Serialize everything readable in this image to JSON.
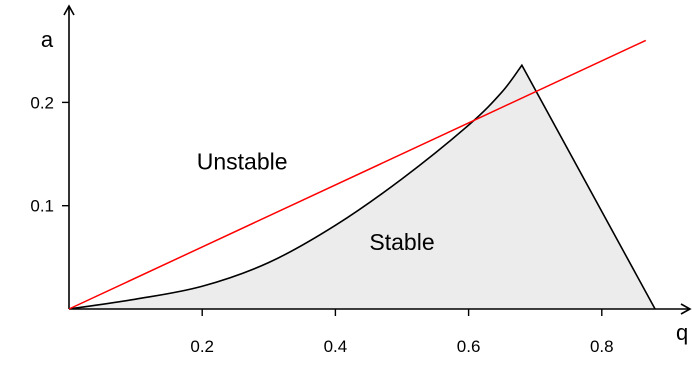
{
  "chart_data": {
    "type": "area",
    "title": "",
    "xlabel": "q",
    "ylabel": "a",
    "xlim": [
      0,
      0.92
    ],
    "ylim": [
      0,
      0.285
    ],
    "x_ticks": [
      0.2,
      0.4,
      0.6,
      0.8
    ],
    "x_tick_labels": [
      "0.2",
      "0.4",
      "0.6",
      "0.8"
    ],
    "y_ticks": [
      0.1,
      0.2
    ],
    "y_tick_labels": [
      "0.1",
      "0.2"
    ],
    "grid": false,
    "legend": "none",
    "series": [
      {
        "kind": "stability-boundary",
        "color": "#000000",
        "fill": "#ececec",
        "points": [
          {
            "x": 0.0,
            "y": 0.0
          },
          {
            "x": 0.1,
            "y": 0.0095
          },
          {
            "x": 0.2,
            "y": 0.022
          },
          {
            "x": 0.3,
            "y": 0.045
          },
          {
            "x": 0.4,
            "y": 0.081
          },
          {
            "x": 0.5,
            "y": 0.126
          },
          {
            "x": 0.6,
            "y": 0.178
          },
          {
            "x": 0.65,
            "y": 0.21
          },
          {
            "x": 0.68,
            "y": 0.236
          },
          {
            "x": 0.88,
            "y": 0.0
          }
        ]
      },
      {
        "kind": "line",
        "color": "#ff0000",
        "points": [
          {
            "x": 0.0,
            "y": 0.0
          },
          {
            "x": 0.866,
            "y": 0.26
          }
        ]
      }
    ],
    "annotations": [
      {
        "text": "Unstable",
        "x": 0.26,
        "y": 0.135
      },
      {
        "text": "Stable",
        "x": 0.5,
        "y": 0.057
      }
    ]
  }
}
